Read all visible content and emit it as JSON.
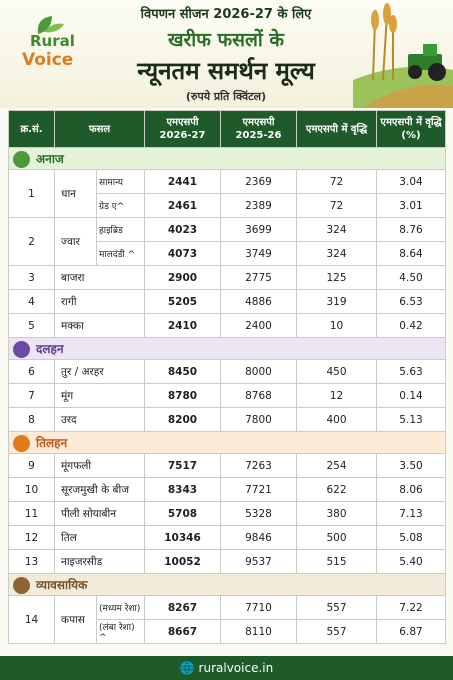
{
  "header": {
    "brand": [
      "Rural",
      "Voice"
    ],
    "title_lines": [
      "विपणन सीजन 2026-27 के लिए",
      "खरीफ फसलों के",
      "न्यूनतम समर्थन मूल्य",
      "(रुपये प्रति क्विंटल)"
    ]
  },
  "table": {
    "columns": [
      "क्र.सं.",
      "फसल",
      "एमएसपी\n2026-27",
      "एमएसपी\n2025-26",
      "एमएसपी में वृद्धि",
      "एमएसपी में वृद्धि\n(%)"
    ],
    "groups": [
      {
        "name": "अनाज",
        "items": [
          {
            "sn": "1",
            "crop": "धान",
            "rows": [
              {
                "variety": "सामान्य",
                "cells": [
                  "2441",
                  "2369",
                  "72",
                  "3.04"
                ]
              },
              {
                "variety": "ग्रेड ए^",
                "cells": [
                  "2461",
                  "2389",
                  "72",
                  "3.01"
                ]
              }
            ]
          },
          {
            "sn": "2",
            "crop": "ज्वार",
            "rows": [
              {
                "variety": "हाइब्रिड",
                "cells": [
                  "4023",
                  "3699",
                  "324",
                  "8.76"
                ]
              },
              {
                "variety": "मालदंडी ^",
                "cells": [
                  "4073",
                  "3749",
                  "324",
                  "8.64"
                ]
              }
            ]
          },
          {
            "sn": "3",
            "crop": "बाजरा",
            "rows": [
              {
                "cells": [
                  "2900",
                  "2775",
                  "125",
                  "4.50"
                ]
              }
            ]
          },
          {
            "sn": "4",
            "crop": "रागी",
            "rows": [
              {
                "cells": [
                  "5205",
                  "4886",
                  "319",
                  "6.53"
                ]
              }
            ]
          },
          {
            "sn": "5",
            "crop": "मक्का",
            "rows": [
              {
                "cells": [
                  "2410",
                  "2400",
                  "10",
                  "0.42"
                ]
              }
            ]
          }
        ]
      },
      {
        "name": "दलहन",
        "items": [
          {
            "sn": "6",
            "crop": "तुर / अरहर",
            "rows": [
              {
                "cells": [
                  "8450",
                  "8000",
                  "450",
                  "5.63"
                ]
              }
            ]
          },
          {
            "sn": "7",
            "crop": "मूंग",
            "rows": [
              {
                "cells": [
                  "8780",
                  "8768",
                  "12",
                  "0.14"
                ]
              }
            ]
          },
          {
            "sn": "8",
            "crop": "उरद",
            "rows": [
              {
                "cells": [
                  "8200",
                  "7800",
                  "400",
                  "5.13"
                ]
              }
            ]
          }
        ]
      },
      {
        "name": "तिलहन",
        "items": [
          {
            "sn": "9",
            "crop": "मूंगफली",
            "rows": [
              {
                "cells": [
                  "7517",
                  "7263",
                  "254",
                  "3.50"
                ]
              }
            ]
          },
          {
            "sn": "10",
            "crop": "सूरजमुखी के बीज",
            "rows": [
              {
                "cells": [
                  "8343",
                  "7721",
                  "622",
                  "8.06"
                ]
              }
            ]
          },
          {
            "sn": "11",
            "crop": "पीली सोयाबीन",
            "rows": [
              {
                "cells": [
                  "5708",
                  "5328",
                  "380",
                  "7.13"
                ]
              }
            ]
          },
          {
            "sn": "12",
            "crop": "तिल",
            "rows": [
              {
                "cells": [
                  "10346",
                  "9846",
                  "500",
                  "5.08"
                ]
              }
            ]
          },
          {
            "sn": "13",
            "crop": "नाइजरसीड",
            "rows": [
              {
                "cells": [
                  "10052",
                  "9537",
                  "515",
                  "5.40"
                ]
              }
            ]
          }
        ]
      },
      {
        "name": "व्यावसायिक",
        "items": [
          {
            "sn": "14",
            "crop": "कपास",
            "rows": [
              {
                "variety": "(मध्यम रेशा)",
                "cells": [
                  "8267",
                  "7710",
                  "557",
                  "7.22"
                ]
              },
              {
                "variety": "(लंबा रेशा) ^",
                "cells": [
                  "8667",
                  "8110",
                  "557",
                  "6.87"
                ]
              }
            ]
          }
        ]
      }
    ]
  },
  "footer": "ruralvoice.in"
}
